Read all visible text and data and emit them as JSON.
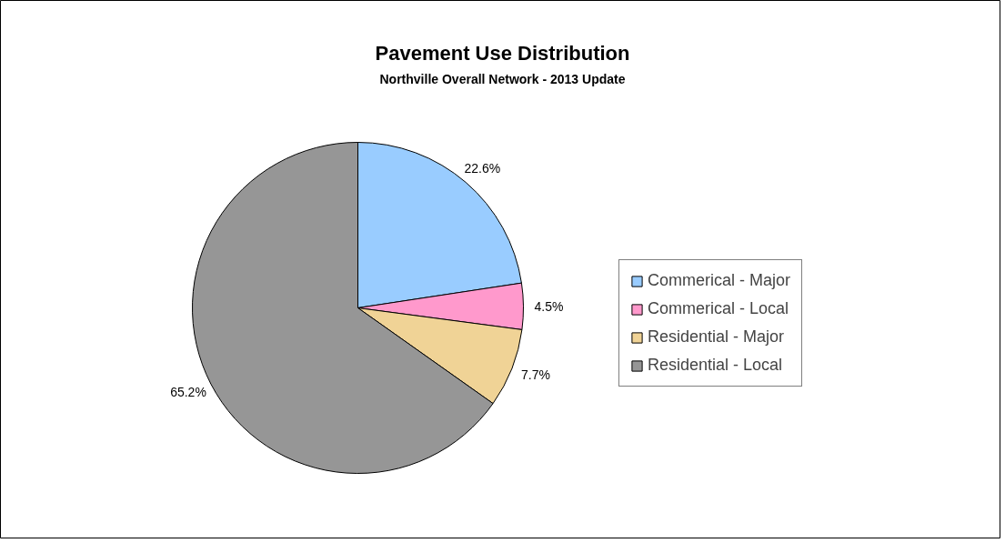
{
  "chart_data": {
    "type": "pie",
    "title": "Pavement Use Distribution",
    "subtitle": "Northville Overall Network - 2013 Update",
    "categories": [
      "Commerical - Major",
      "Commerical - Local",
      "Residential - Major",
      "Residential - Local"
    ],
    "values": [
      22.6,
      4.5,
      7.7,
      65.2
    ],
    "colors": [
      "#99ccff",
      "#ff99cc",
      "#f0d396",
      "#969696"
    ],
    "value_labels": [
      "22.6%",
      "4.5%",
      "7.7%",
      "65.2%"
    ],
    "legend": "right"
  }
}
